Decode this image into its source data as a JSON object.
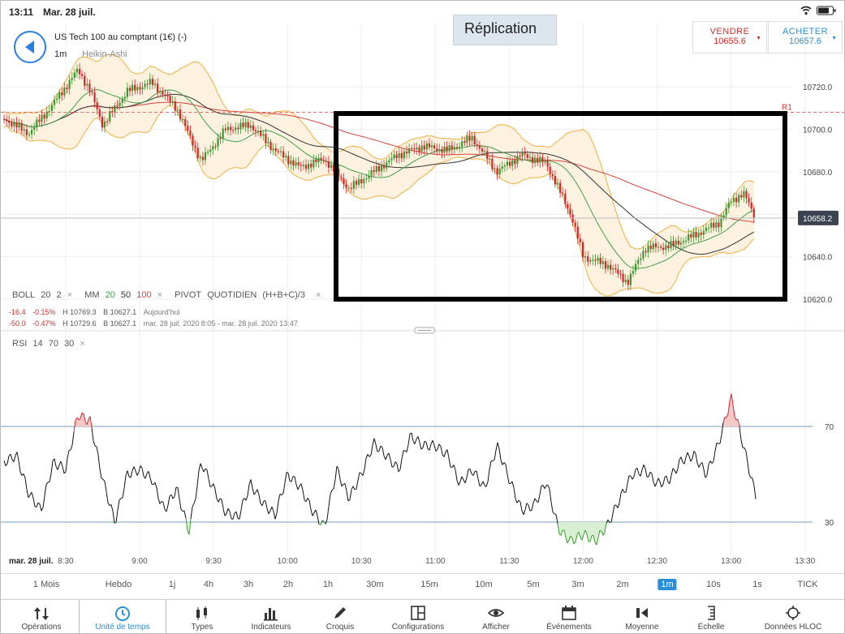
{
  "status": {
    "time": "13:11",
    "date": "Mar. 28 juil."
  },
  "header": {
    "instrument": "US Tech 100 au comptant (1€) (-)",
    "timeframe": "1m",
    "chart_type": "Heikin-Ashi",
    "replication": "Réplication"
  },
  "trade": {
    "sell_label": "VENDRE",
    "sell_price": "10655.6",
    "buy_label": "ACHETER",
    "buy_price": "10657.6"
  },
  "colors": {
    "up": "#3a9a2e",
    "down": "#d4262a",
    "boll": "#f0b040",
    "ma20": "#3fa04a",
    "ma100": "#d9423a",
    "ma50": "#333333",
    "accent": "#2a8fd8"
  },
  "price_axis": {
    "labels": [
      "10720.0",
      "10700.0",
      "10680.0",
      "10640.0",
      "10620.0"
    ],
    "current": "10658.2",
    "pivot_label": "R1"
  },
  "legend": {
    "boll": "BOLL",
    "boll_p1": "20",
    "boll_p2": "2",
    "mm": "MM",
    "mm_p1": "20",
    "mm_p2": "50",
    "mm_p3": "100",
    "pivot": "PIVOT",
    "pivot_p1": "QUOTIDIEN",
    "pivot_p2": "(H+B+C)/3",
    "close": "×"
  },
  "stats": [
    {
      "change": "-16.4",
      "pct": "-0.15%",
      "high": "H 10769.3",
      "low": "B 10627.1",
      "period": "Aujourd'hui"
    },
    {
      "change": "-50.0",
      "pct": "-0.47%",
      "high": "H 10729.6",
      "low": "B 10627.1",
      "period": "mar. 28 juil. 2020 8:05 - mar. 28 juil. 2020 13:47"
    }
  ],
  "rsi": {
    "label": "RSI",
    "p1": "14",
    "p2": "70",
    "p3": "30",
    "level_high": "70",
    "level_low": "30"
  },
  "time_axis": {
    "date": "mar. 28 juil.",
    "labels": [
      "8:30",
      "9:00",
      "9:30",
      "10:00",
      "10:30",
      "11:00",
      "11:30",
      "12:00",
      "12:30",
      "13:00",
      "13:30"
    ]
  },
  "timeframes": [
    "1 Mois",
    "Hebdo",
    "1j",
    "4h",
    "3h",
    "2h",
    "1h",
    "30m",
    "15m",
    "10m",
    "5m",
    "3m",
    "2m",
    "1m",
    "10s",
    "1s",
    "TICK"
  ],
  "active_timeframe": "1m",
  "toolbar": [
    {
      "label": "Opérations",
      "icon": "updown-arrows-icon"
    },
    {
      "label": "Unité de temps",
      "icon": "clock-icon"
    },
    {
      "label": "Types",
      "icon": "candles-icon"
    },
    {
      "label": "Indicateurs",
      "icon": "bar-chart-icon"
    },
    {
      "label": "Croquis",
      "icon": "pencil-icon"
    },
    {
      "label": "Configurations",
      "icon": "layout-icon"
    },
    {
      "label": "Afficher",
      "icon": "eye-icon"
    },
    {
      "label": "Événements",
      "icon": "calendar-icon"
    },
    {
      "label": "Moyenne",
      "icon": "average-icon"
    },
    {
      "label": "Échelle",
      "icon": "scale-icon"
    },
    {
      "label": "Données HLOC",
      "icon": "crosshair-icon"
    }
  ],
  "chart_data": [
    {
      "type": "candlestick",
      "title": "US Tech 100 au comptant (1€) (-)",
      "x_range": [
        "8:05",
        "13:10"
      ],
      "ylim": [
        10615,
        10735
      ],
      "price_path": [
        [
          "8:05",
          10705
        ],
        [
          "8:15",
          10698
        ],
        [
          "8:25",
          10712
        ],
        [
          "8:35",
          10728
        ],
        [
          "8:40",
          10718
        ],
        [
          "8:45",
          10702
        ],
        [
          "8:55",
          10718
        ],
        [
          "9:05",
          10722
        ],
        [
          "9:15",
          10710
        ],
        [
          "9:25",
          10685
        ],
        [
          "9:35",
          10700
        ],
        [
          "9:45",
          10702
        ],
        [
          "9:55",
          10690
        ],
        [
          "10:05",
          10682
        ],
        [
          "10:15",
          10686
        ],
        [
          "10:25",
          10672
        ],
        [
          "10:35",
          10680
        ],
        [
          "10:45",
          10688
        ],
        [
          "10:55",
          10692
        ],
        [
          "11:05",
          10690
        ],
        [
          "11:15",
          10696
        ],
        [
          "11:25",
          10680
        ],
        [
          "11:35",
          10688
        ],
        [
          "11:45",
          10684
        ],
        [
          "11:55",
          10660
        ],
        [
          "12:00",
          10640
        ],
        [
          "12:10",
          10636
        ],
        [
          "12:18",
          10628
        ],
        [
          "12:25",
          10644
        ],
        [
          "12:35",
          10645
        ],
        [
          "12:45",
          10650
        ],
        [
          "12:55",
          10656
        ],
        [
          "13:00",
          10666
        ],
        [
          "13:05",
          10670
        ],
        [
          "13:10",
          10658
        ]
      ],
      "indicators": [
        "BOLL 20 2",
        "MM 20",
        "MM 50",
        "MM 100",
        "PIVOT QUOTIDIEN (H+B+C)/3"
      ],
      "pivot_r1": 10708,
      "current_price": 10658.2
    },
    {
      "type": "line",
      "title": "RSI 14",
      "ylim": [
        0,
        100
      ],
      "levels": [
        70,
        30
      ],
      "values": [
        [
          "8:05",
          55
        ],
        [
          "8:10",
          58
        ],
        [
          "8:15",
          42
        ],
        [
          "8:20",
          35
        ],
        [
          "8:25",
          55
        ],
        [
          "8:30",
          52
        ],
        [
          "8:35",
          75
        ],
        [
          "8:40",
          72
        ],
        [
          "8:45",
          48
        ],
        [
          "8:50",
          30
        ],
        [
          "8:55",
          50
        ],
        [
          "9:00",
          52
        ],
        [
          "9:05",
          48
        ],
        [
          "9:10",
          35
        ],
        [
          "9:15",
          44
        ],
        [
          "9:20",
          26
        ],
        [
          "9:25",
          55
        ],
        [
          "9:30",
          44
        ],
        [
          "9:35",
          34
        ],
        [
          "9:40",
          32
        ],
        [
          "9:45",
          46
        ],
        [
          "9:50",
          38
        ],
        [
          "9:55",
          33
        ],
        [
          "10:00",
          50
        ],
        [
          "10:05",
          45
        ],
        [
          "10:10",
          35
        ],
        [
          "10:15",
          28
        ],
        [
          "10:20",
          52
        ],
        [
          "10:25",
          40
        ],
        [
          "10:30",
          50
        ],
        [
          "10:35",
          63
        ],
        [
          "10:40",
          58
        ],
        [
          "10:45",
          52
        ],
        [
          "10:50",
          66
        ],
        [
          "10:55",
          62
        ],
        [
          "11:00",
          62
        ],
        [
          "11:05",
          58
        ],
        [
          "11:10",
          46
        ],
        [
          "11:15",
          52
        ],
        [
          "11:20",
          44
        ],
        [
          "11:25",
          62
        ],
        [
          "11:30",
          48
        ],
        [
          "11:35",
          35
        ],
        [
          "11:40",
          37
        ],
        [
          "11:45",
          47
        ],
        [
          "11:50",
          27
        ],
        [
          "11:55",
          22
        ],
        [
          "12:00",
          25
        ],
        [
          "12:05",
          22
        ],
        [
          "12:10",
          29
        ],
        [
          "12:15",
          40
        ],
        [
          "12:20",
          50
        ],
        [
          "12:25",
          52
        ],
        [
          "12:30",
          46
        ],
        [
          "12:35",
          48
        ],
        [
          "12:40",
          56
        ],
        [
          "12:45",
          58
        ],
        [
          "12:50",
          50
        ],
        [
          "12:55",
          63
        ],
        [
          "13:00",
          82
        ],
        [
          "13:05",
          62
        ],
        [
          "13:10",
          41
        ]
      ]
    }
  ]
}
